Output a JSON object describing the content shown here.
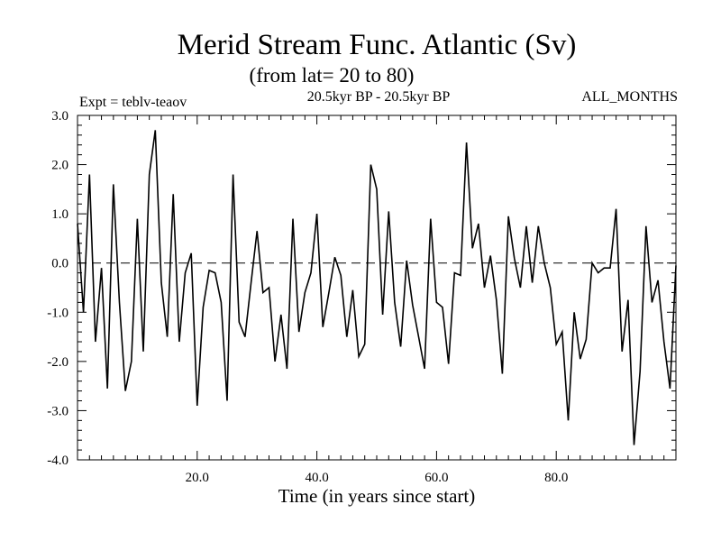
{
  "header": {
    "title": "Merid Stream Func. Atlantic (Sv)",
    "subtitle": "(from lat= 20 to 80)",
    "expt": "Expt = teblv-teaov",
    "period": "20.5kyr BP - 20.5kyr BP",
    "months": "ALL_MONTHS"
  },
  "chart_data": {
    "type": "line",
    "title": "Merid Stream Func. Atlantic (Sv)",
    "xlabel": "Time (in years since start)",
    "ylabel": "",
    "xlim": [
      0,
      100
    ],
    "ylim": [
      -4.0,
      3.0
    ],
    "xticks": [
      20,
      40,
      60,
      80
    ],
    "xtick_labels": [
      "20.0",
      "40.0",
      "60.0",
      "80.0"
    ],
    "yticks": [
      3.0,
      2.0,
      1.0,
      0.0,
      -1.0,
      -2.0,
      -3.0,
      -4.0
    ],
    "ytick_labels": [
      "3.0",
      "2.0",
      "1.0",
      "0.0",
      "-1.0",
      "-2.0",
      "-3.0",
      "-4.0"
    ],
    "zero_line": "dashed",
    "series": [
      {
        "name": "teblv-teaov",
        "x": [
          0,
          1,
          2,
          3,
          4,
          5,
          6,
          7,
          8,
          9,
          10,
          11,
          12,
          13,
          14,
          15,
          16,
          17,
          18,
          19,
          20,
          21,
          22,
          23,
          24,
          25,
          26,
          27,
          28,
          29,
          30,
          31,
          32,
          33,
          34,
          35,
          36,
          37,
          38,
          39,
          40,
          41,
          42,
          43,
          44,
          45,
          46,
          47,
          48,
          49,
          50,
          51,
          52,
          53,
          54,
          55,
          56,
          57,
          58,
          59,
          60,
          61,
          62,
          63,
          64,
          65,
          66,
          67,
          68,
          69,
          70,
          71,
          72,
          73,
          74,
          75,
          76,
          77,
          78,
          79,
          80,
          81,
          82,
          83,
          84,
          85,
          86,
          87,
          88,
          89,
          90,
          91,
          92,
          93,
          94,
          95,
          96,
          97,
          98,
          99,
          100
        ],
        "values": [
          0.8,
          -1.0,
          1.8,
          -1.6,
          -0.1,
          -2.55,
          1.6,
          -0.8,
          -2.6,
          -2.0,
          0.9,
          -1.8,
          1.8,
          2.7,
          -0.4,
          -1.5,
          1.4,
          -1.6,
          -0.2,
          0.2,
          -2.9,
          -0.9,
          -0.15,
          -0.2,
          -0.8,
          -2.8,
          1.8,
          -1.2,
          -1.5,
          -0.4,
          0.65,
          -0.6,
          -0.5,
          -2.0,
          -1.05,
          -2.15,
          0.9,
          -1.4,
          -0.6,
          -0.2,
          1.0,
          -1.3,
          -0.6,
          0.12,
          -0.25,
          -1.5,
          -0.55,
          -1.9,
          -1.65,
          2.0,
          1.5,
          -1.05,
          1.05,
          -0.8,
          -1.7,
          0.05,
          -0.85,
          -1.5,
          -2.15,
          0.9,
          -0.8,
          -0.9,
          -2.05,
          -0.2,
          -0.25,
          2.45,
          0.3,
          0.8,
          -0.5,
          0.15,
          -0.75,
          -2.25,
          0.95,
          0.1,
          -0.5,
          0.75,
          -0.4,
          0.75,
          0.0,
          -0.5,
          -1.65,
          -1.4,
          -3.2,
          -1.0,
          -1.95,
          -1.55,
          0.0,
          -0.2,
          -0.1,
          -0.1,
          1.1,
          -1.8,
          -0.75,
          -3.7,
          -2.2,
          0.75,
          -0.8,
          -0.35,
          -1.6,
          -2.55,
          -0.05
        ]
      }
    ]
  }
}
